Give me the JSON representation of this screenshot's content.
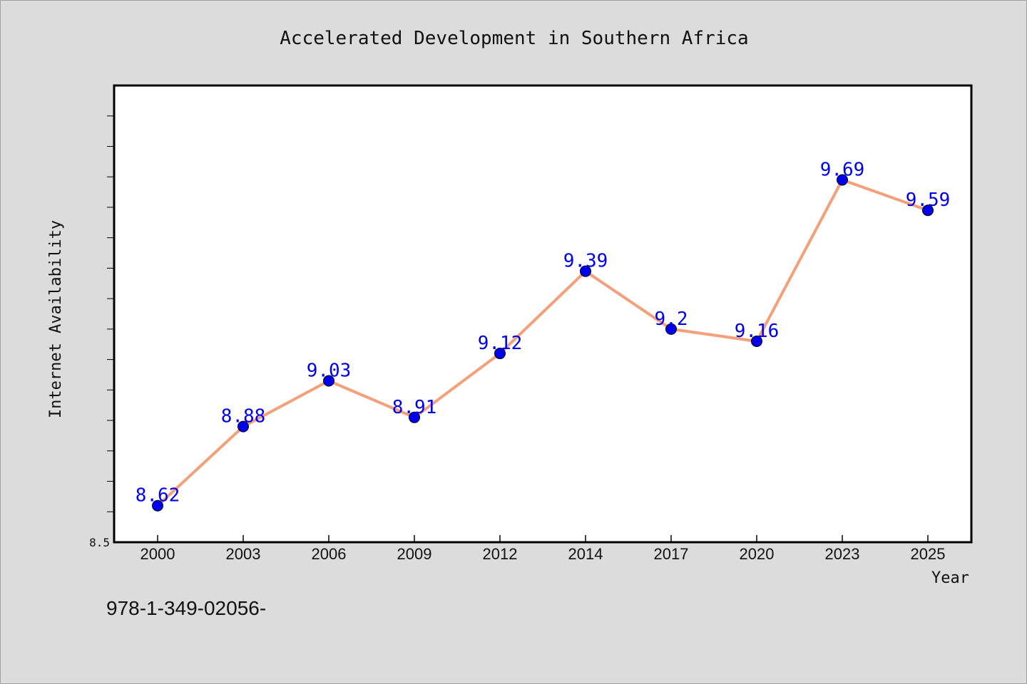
{
  "chart_data": {
    "type": "line",
    "title": "Accelerated Development in Southern Africa",
    "xlabel": "Year",
    "ylabel": "Internet Availability",
    "categories": [
      "2000",
      "2003",
      "2006",
      "2009",
      "2012",
      "2014",
      "2017",
      "2020",
      "2023",
      "2025"
    ],
    "values": [
      8.62,
      8.88,
      9.03,
      8.91,
      9.12,
      9.39,
      9.2,
      9.16,
      9.69,
      9.59
    ],
    "ylim": [
      8.5,
      10.0
    ],
    "ytick_labels": [
      "8.5"
    ],
    "grid": false,
    "legend": "none",
    "line_color": "#f4a07a",
    "marker_color": "#0000ee",
    "label_color": "#0000ee"
  },
  "footer_text": "978-1-349-02056-"
}
